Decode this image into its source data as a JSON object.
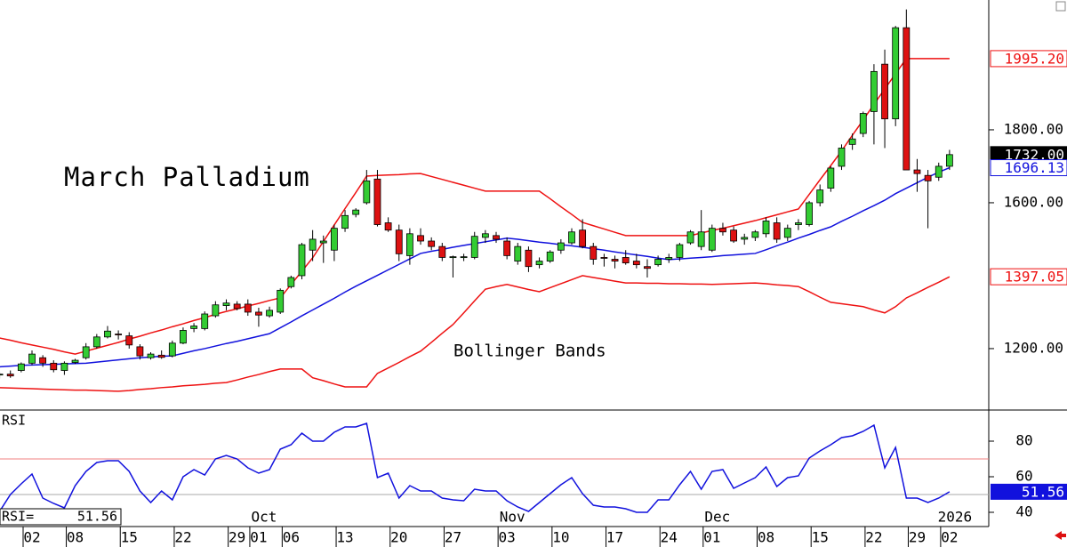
{
  "chart_data": [
    {
      "type": "candlestick",
      "title": "March Palladium",
      "annotation": "Bollinger Bands",
      "categories": [
        null,
        null,
        null,
        "02",
        null,
        null,
        null,
        "08",
        null,
        null,
        null,
        null,
        "15",
        null,
        null,
        null,
        null,
        "22",
        null,
        null,
        null,
        null,
        "29",
        null,
        "01",
        null,
        null,
        "06",
        null,
        null,
        null,
        null,
        "13",
        null,
        null,
        null,
        null,
        "20",
        null,
        null,
        null,
        null,
        "27",
        null,
        null,
        null,
        null,
        "03",
        null,
        null,
        null,
        null,
        "10",
        null,
        null,
        null,
        null,
        "17",
        null,
        null,
        null,
        null,
        "24",
        null,
        null,
        null,
        "01",
        null,
        null,
        null,
        null,
        "08",
        null,
        null,
        null,
        null,
        "15",
        null,
        null,
        null,
        null,
        "22",
        null,
        null,
        null,
        "29",
        null,
        null,
        "02"
      ],
      "month_labels": [
        null,
        null,
        null,
        null,
        null,
        null,
        null,
        null,
        null,
        null,
        null,
        null,
        null,
        null,
        null,
        null,
        null,
        null,
        null,
        null,
        null,
        null,
        null,
        null,
        "Oct",
        null,
        null,
        null,
        null,
        null,
        null,
        null,
        null,
        null,
        null,
        null,
        null,
        null,
        null,
        null,
        null,
        null,
        null,
        null,
        null,
        null,
        null,
        "Nov",
        null,
        null,
        null,
        null,
        null,
        null,
        null,
        null,
        null,
        null,
        null,
        null,
        null,
        null,
        null,
        null,
        null,
        null,
        "Dec",
        null,
        null,
        null,
        null,
        null,
        null,
        null,
        null,
        null,
        null,
        null,
        null,
        null,
        null,
        null,
        null,
        null,
        null,
        null,
        null,
        null,
        "2026"
      ],
      "open": [
        1128,
        1130,
        1140,
        1160,
        1175,
        1160,
        1140,
        1162,
        1175,
        1205,
        1232,
        1240,
        1235,
        1205,
        1175,
        1182,
        1180,
        1215,
        1255,
        1255,
        1290,
        1318,
        1322,
        1322,
        1300,
        1290,
        1300,
        1370,
        1400,
        1470,
        1490,
        1470,
        1530,
        1568,
        1600,
        1665,
        1545,
        1525,
        1455,
        1510,
        1495,
        1480,
        1450,
        1450,
        1450,
        1505,
        1510,
        1495,
        1440,
        1470,
        1430,
        1440,
        1470,
        1490,
        1525,
        1480,
        1450,
        1445,
        1450,
        1440,
        1425,
        1430,
        1445,
        1450,
        1490,
        1480,
        1470,
        1530,
        1525,
        1500,
        1505,
        1515,
        1545,
        1505,
        1540,
        1540,
        1600,
        1640,
        1700,
        1760,
        1790,
        1850,
        1980,
        1830,
        2080,
        1690,
        1675,
        1670,
        1700
      ],
      "high": [
        1135,
        1140,
        1162,
        1195,
        1182,
        1168,
        1165,
        1172,
        1215,
        1240,
        1262,
        1250,
        1245,
        1212,
        1190,
        1195,
        1222,
        1258,
        1270,
        1302,
        1330,
        1335,
        1330,
        1335,
        1312,
        1315,
        1365,
        1400,
        1490,
        1525,
        1510,
        1540,
        1580,
        1585,
        1690,
        1690,
        1560,
        1540,
        1530,
        1530,
        1505,
        1490,
        1455,
        1460,
        1520,
        1525,
        1520,
        1505,
        1490,
        1480,
        1450,
        1470,
        1500,
        1530,
        1555,
        1490,
        1460,
        1455,
        1470,
        1460,
        1445,
        1455,
        1460,
        1490,
        1525,
        1580,
        1540,
        1545,
        1535,
        1515,
        1525,
        1560,
        1560,
        1540,
        1555,
        1605,
        1650,
        1700,
        1760,
        1790,
        1850,
        1980,
        2020,
        2085,
        2130,
        1720,
        1690,
        1710,
        1745
      ],
      "low": [
        1118,
        1120,
        1135,
        1155,
        1150,
        1135,
        1128,
        1158,
        1170,
        1200,
        1228,
        1225,
        1200,
        1170,
        1170,
        1172,
        1176,
        1212,
        1245,
        1250,
        1285,
        1305,
        1305,
        1290,
        1260,
        1285,
        1295,
        1365,
        1390,
        1440,
        1435,
        1440,
        1520,
        1560,
        1595,
        1535,
        1520,
        1440,
        1430,
        1485,
        1470,
        1440,
        1395,
        1440,
        1445,
        1490,
        1490,
        1445,
        1430,
        1410,
        1420,
        1435,
        1460,
        1485,
        1475,
        1430,
        1425,
        1420,
        1430,
        1420,
        1395,
        1425,
        1435,
        1440,
        1485,
        1470,
        1465,
        1510,
        1490,
        1485,
        1495,
        1505,
        1490,
        1495,
        1525,
        1535,
        1590,
        1630,
        1690,
        1745,
        1780,
        1760,
        1750,
        1810,
        1690,
        1630,
        1530,
        1660,
        1690
      ],
      "close": [
        1130,
        1125,
        1158,
        1185,
        1160,
        1142,
        1160,
        1168,
        1205,
        1232,
        1248,
        1238,
        1210,
        1180,
        1185,
        1176,
        1215,
        1250,
        1262,
        1295,
        1320,
        1325,
        1310,
        1300,
        1292,
        1305,
        1360,
        1395,
        1485,
        1500,
        1495,
        1530,
        1565,
        1580,
        1660,
        1540,
        1525,
        1460,
        1515,
        1495,
        1480,
        1450,
        1452,
        1452,
        1508,
        1515,
        1500,
        1455,
        1480,
        1425,
        1440,
        1465,
        1490,
        1520,
        1480,
        1445,
        1448,
        1440,
        1435,
        1430,
        1420,
        1445,
        1450,
        1485,
        1520,
        1520,
        1530,
        1520,
        1495,
        1505,
        1520,
        1550,
        1500,
        1530,
        1545,
        1600,
        1635,
        1695,
        1750,
        1775,
        1845,
        1960,
        1830,
        2080,
        1690,
        1680,
        1660,
        1700,
        1732
      ],
      "up_color": "#33cc33",
      "down_color": "#dd1111",
      "series": [
        {
          "color": "#ee1111",
          "values": [
            1229,
            1223,
            1216,
            1210,
            1204,
            1198,
            1191,
            1185,
            1193,
            1201,
            1209,
            1217,
            1226,
            1234,
            1243,
            1251,
            1260,
            1268,
            1277,
            1285,
            1294,
            1302,
            1309,
            1317,
            1324,
            1332,
            1339,
            1376,
            1412,
            1449,
            1494,
            1539,
            1584,
            1628,
            1673,
            1675,
            1676,
            1677,
            1679,
            1680,
            1672,
            1664,
            1656,
            1648,
            1640,
            1632,
            1632,
            1632,
            1632,
            1632,
            1632,
            1611,
            1589,
            1568,
            1546,
            1537,
            1528,
            1519,
            1510,
            1510,
            1510,
            1510,
            1510,
            1510,
            1510,
            1517,
            1524,
            1530,
            1537,
            1544,
            1551,
            1559,
            1567,
            1575,
            1583,
            1623,
            1663,
            1702,
            1742,
            1785,
            1827,
            1870,
            1912,
            1954,
            1995.2,
            1995.2,
            1995.2,
            1995.2,
            1995.2
          ]
        },
        {
          "color": "#1111dd",
          "values": [
            1150,
            1152,
            1154,
            1155,
            1156,
            1157,
            1158,
            1159,
            1160,
            1163,
            1166,
            1169,
            1172,
            1175,
            1177,
            1179,
            1180,
            1187,
            1194,
            1200,
            1207,
            1214,
            1220,
            1227,
            1234,
            1241,
            1257,
            1273,
            1290,
            1306,
            1322,
            1338,
            1355,
            1371,
            1386,
            1401,
            1416,
            1431,
            1446,
            1461,
            1467,
            1472,
            1478,
            1483,
            1488,
            1493,
            1498,
            1503,
            1500,
            1496,
            1492,
            1489,
            1485,
            1482,
            1478,
            1474,
            1470,
            1465,
            1461,
            1457,
            1453,
            1448,
            1444,
            1446,
            1448,
            1450,
            1452,
            1455,
            1457,
            1459,
            1461,
            1471,
            1482,
            1492,
            1503,
            1513,
            1524,
            1534,
            1549,
            1563,
            1578,
            1592,
            1607,
            1625,
            1640,
            1655,
            1670,
            1684,
            1696.13
          ]
        },
        {
          "color": "#ee1111",
          "values": [
            1093,
            1092,
            1091,
            1090,
            1089,
            1088,
            1087,
            1086,
            1086,
            1085,
            1084,
            1083,
            1085,
            1088,
            1090,
            1093,
            1095,
            1098,
            1100,
            1102,
            1105,
            1107,
            1114,
            1122,
            1129,
            1137,
            1144,
            1144,
            1144,
            1120,
            1112,
            1103,
            1095,
            1095,
            1095,
            1132,
            1147,
            1162,
            1178,
            1193,
            1217,
            1242,
            1266,
            1298,
            1331,
            1363,
            1370,
            1376,
            1369,
            1362,
            1356,
            1367,
            1378,
            1389,
            1400,
            1395,
            1390,
            1385,
            1380,
            1380,
            1379,
            1379,
            1378,
            1378,
            1377,
            1377,
            1376,
            1377,
            1378,
            1379,
            1380,
            1378,
            1375,
            1373,
            1370,
            1356,
            1341,
            1327,
            1323,
            1319,
            1315,
            1306,
            1298,
            1315,
            1339,
            1353,
            1368,
            1382,
            1397.05
          ]
        }
      ],
      "price_labels": [
        {
          "value": 1995.2,
          "label": "1995.20",
          "color": "#ee1111",
          "bg": "#ffffff"
        },
        {
          "value": 1732,
          "label": "1732.00",
          "color": "#ffffff",
          "bg": "#000000"
        },
        {
          "value": 1696.13,
          "label": "1696.13",
          "color": "#1111dd",
          "bg": "#ffffff"
        },
        {
          "value": 1397.05,
          "label": "1397.05",
          "color": "#ee1111",
          "bg": "#ffffff"
        }
      ],
      "ylim": [
        1034,
        2156
      ],
      "yticks": [
        {
          "value": 1200,
          "label": "1200.00"
        },
        {
          "value": 1600,
          "label": "1600.00"
        },
        {
          "value": 1800,
          "label": "1800.00"
        }
      ]
    },
    {
      "type": "line",
      "title": "RSI",
      "series": [
        {
          "color": "#1111dd",
          "values": [
            40.5,
            50,
            56,
            61.5,
            48,
            45,
            42.5,
            55,
            63,
            68,
            69,
            69,
            63,
            52,
            45.5,
            52,
            47,
            60,
            64,
            61,
            70,
            72,
            70,
            65,
            62,
            64,
            75.5,
            78,
            84.5,
            80,
            80,
            85,
            88,
            88,
            90,
            59.5,
            62,
            48,
            55,
            52,
            52,
            48,
            47,
            46.5,
            53,
            52,
            52,
            46.5,
            43,
            40.5,
            45.5,
            50.5,
            55.5,
            59.5,
            50.5,
            44,
            43,
            43,
            42,
            40,
            40,
            47,
            47,
            55.5,
            63,
            53,
            63,
            64,
            53.5,
            56.5,
            59.5,
            65.5,
            54.5,
            59.5,
            60.5,
            70.5,
            74.5,
            78,
            82,
            83,
            85.5,
            89,
            65,
            76.5,
            48,
            48,
            45.5,
            48,
            51.56
          ]
        }
      ],
      "hlines": [
        {
          "value": 70,
          "color": "#f08080"
        },
        {
          "value": 50,
          "color": "#aaaaaa"
        }
      ],
      "readout_label": "RSI=",
      "readout_value": 51.56,
      "value_label": {
        "value": 51.56,
        "color": "#ffffff",
        "bg": "#1111dd"
      },
      "ylim": [
        33,
        97
      ],
      "yticks": [
        40,
        60,
        80
      ]
    }
  ]
}
